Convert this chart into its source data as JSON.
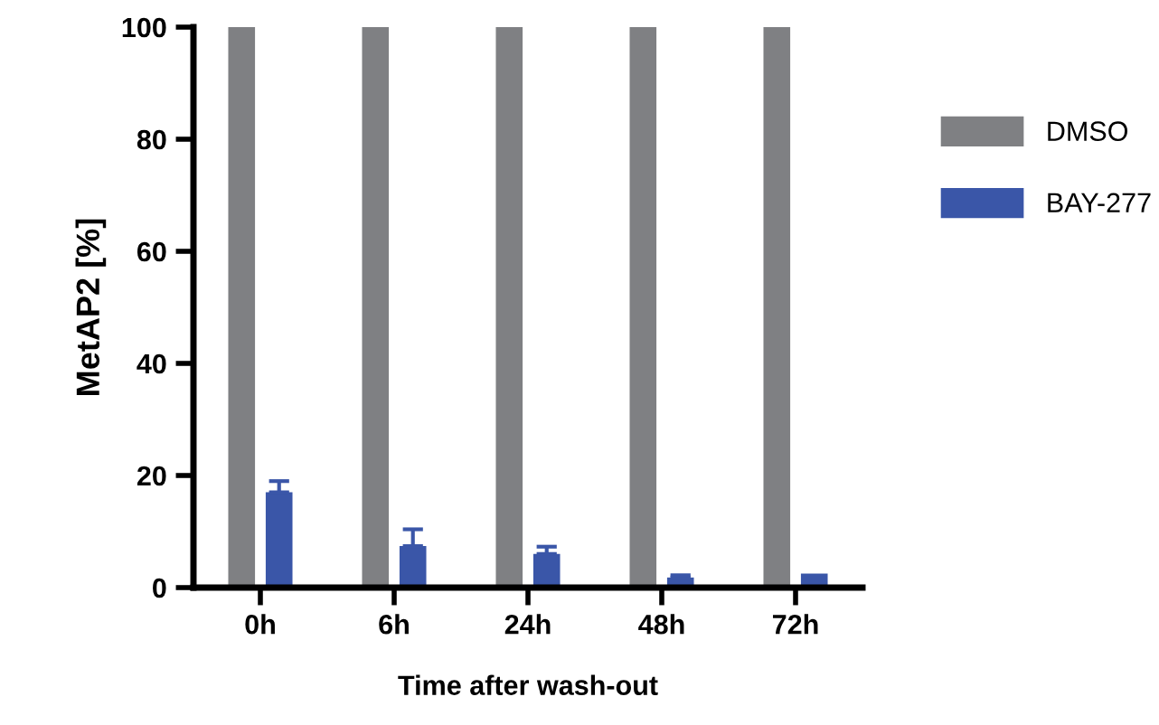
{
  "chart_data": {
    "type": "bar",
    "xlabel": "Time after wash-out",
    "ylabel": "MetAP2 [%]",
    "categories": [
      "0h",
      "6h",
      "24h",
      "48h",
      "72h"
    ],
    "series": [
      {
        "name": "DMSO",
        "color": "#7f8083",
        "values": [
          100,
          100,
          100,
          100,
          100
        ]
      },
      {
        "name": "BAY-277",
        "color": "#3a56a8",
        "values": [
          17,
          7.4,
          6,
          1.8,
          2.5
        ],
        "errors": [
          2,
          3,
          1.3,
          0.4,
          null
        ]
      }
    ],
    "ylim": [
      0,
      100
    ],
    "yticks": [
      0,
      20,
      40,
      60,
      80,
      100
    ],
    "grid": false,
    "legend": "right"
  }
}
